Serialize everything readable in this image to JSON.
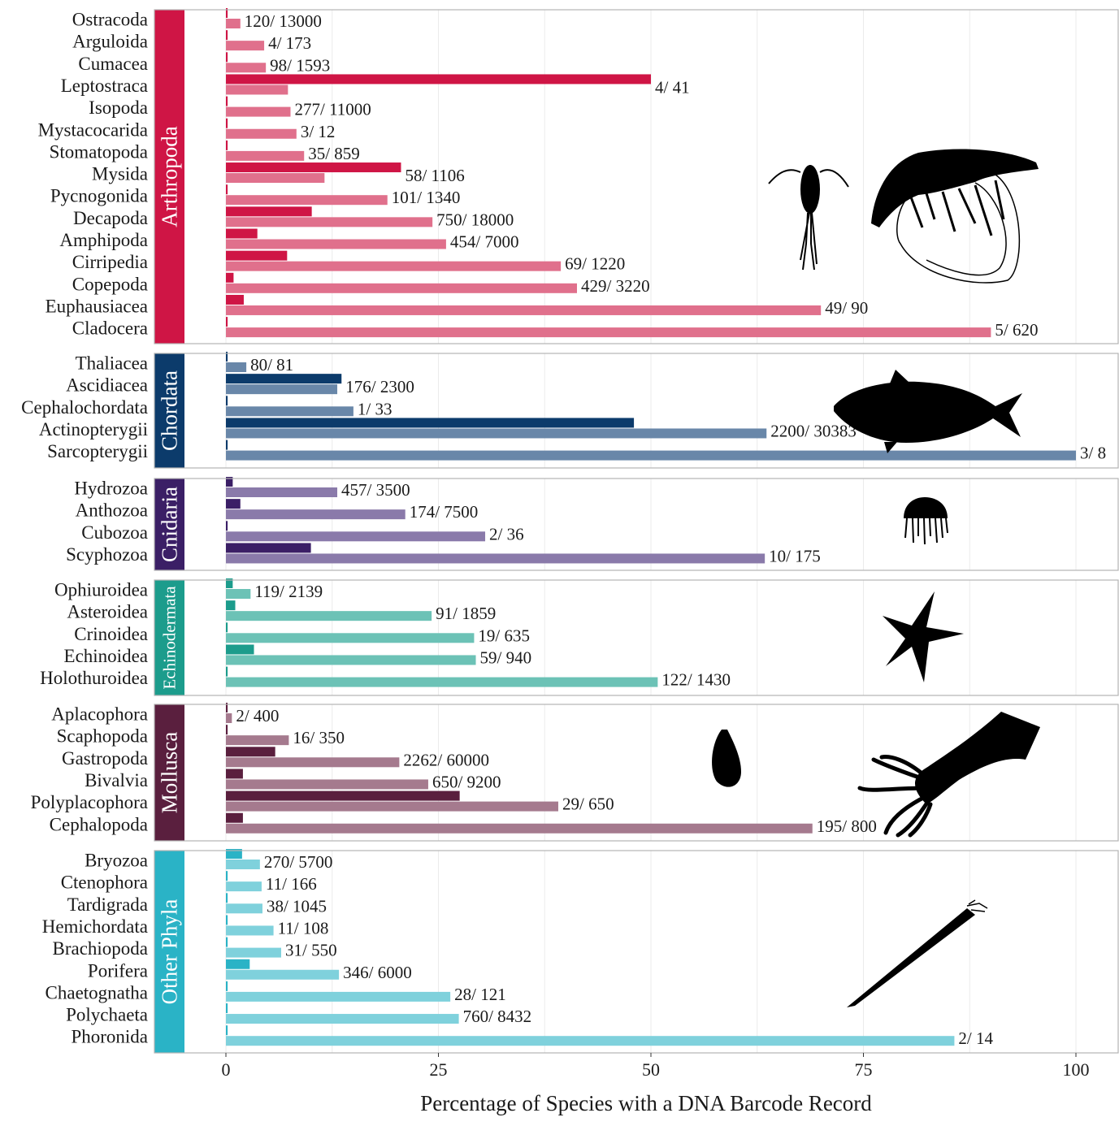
{
  "chart_data": {
    "type": "bar",
    "orientation": "horizontal",
    "faceted": true,
    "xlabel": "Percentage of Species with a DNA Barcode Record",
    "xlim": [
      0,
      100
    ],
    "xticks": [
      0,
      25,
      50,
      75,
      100
    ],
    "legend": "none",
    "series_names": [
      "primary (darker bar, upper)",
      "secondary (lighter bar, lower)"
    ],
    "panels": [
      {
        "phylum": "Arthropoda",
        "color_dark": "#cf1545",
        "color_light": "#e0708c",
        "icons": [
          "copepod-silhouette-icon",
          "shrimp-silhouette-icon"
        ],
        "rows": [
          {
            "name": "Ostracoda",
            "primary": 0.2,
            "secondary": 1.7,
            "label": "120/ 13000"
          },
          {
            "name": "Arguloida",
            "primary": 0.2,
            "secondary": 4.5,
            "label": "4/ 173"
          },
          {
            "name": "Cumacea",
            "primary": 0.2,
            "secondary": 4.7,
            "label": "98/ 1593"
          },
          {
            "name": "Leptostraca",
            "primary": 50,
            "secondary": 7.3,
            "label": "4/ 41"
          },
          {
            "name": "Isopoda",
            "primary": 0.2,
            "secondary": 7.6,
            "label": "277/ 11000"
          },
          {
            "name": "Mystacocarida",
            "primary": 0.2,
            "secondary": 8.3,
            "label": "3/ 12"
          },
          {
            "name": "Stomatopoda",
            "primary": 0.2,
            "secondary": 9.2,
            "label": "35/ 859"
          },
          {
            "name": "Mysida",
            "primary": 20.6,
            "secondary": 11.6,
            "label": "58/ 1106"
          },
          {
            "name": "Pycnogonida",
            "primary": 0.2,
            "secondary": 19.0,
            "label": "101/ 1340"
          },
          {
            "name": "Decapoda",
            "primary": 10.1,
            "secondary": 24.3,
            "label": "750/ 18000"
          },
          {
            "name": "Amphipoda",
            "primary": 3.7,
            "secondary": 25.9,
            "label": "454/ 7000"
          },
          {
            "name": "Cirripedia",
            "primary": 7.2,
            "secondary": 39.4,
            "label": "69/ 1220"
          },
          {
            "name": "Copepoda",
            "primary": 0.9,
            "secondary": 41.3,
            "label": "429/ 3220"
          },
          {
            "name": "Euphausiacea",
            "primary": 2.1,
            "secondary": 70.0,
            "label": "49/ 90"
          },
          {
            "name": "Cladocera",
            "primary": 0.2,
            "secondary": 90.0,
            "label": "5/ 620"
          }
        ]
      },
      {
        "phylum": "Chordata",
        "color_dark": "#0c3b6b",
        "color_light": "#6987a9",
        "icons": [
          "fish-silhouette-icon"
        ],
        "rows": [
          {
            "name": "Thaliacea",
            "primary": 0.2,
            "secondary": 2.4,
            "label": "80/ 81"
          },
          {
            "name": "Ascidiacea",
            "primary": 13.6,
            "secondary": 13.1,
            "label": "176/ 2300"
          },
          {
            "name": "Cephalochordata",
            "primary": 0.2,
            "secondary": 15.0,
            "label": "1/ 33"
          },
          {
            "name": "Actinopterygii",
            "primary": 48.0,
            "secondary": 63.6,
            "label": "2200/ 30383"
          },
          {
            "name": "Sarcopterygii",
            "primary": 0.2,
            "secondary": 100,
            "label": "3/ 8"
          }
        ]
      },
      {
        "phylum": "Cnidaria",
        "color_dark": "#3b1f66",
        "color_light": "#8a7aaa",
        "icons": [
          "jellyfish-silhouette-icon"
        ],
        "rows": [
          {
            "name": "Hydrozoa",
            "primary": 0.8,
            "secondary": 13.1,
            "label": "457/ 3500"
          },
          {
            "name": "Anthozoa",
            "primary": 1.7,
            "secondary": 21.1,
            "label": "174/ 7500"
          },
          {
            "name": "Cubozoa",
            "primary": 0.2,
            "secondary": 30.5,
            "label": "2/ 36"
          },
          {
            "name": "Scyphozoa",
            "primary": 10.0,
            "secondary": 63.4,
            "label": "10/ 175"
          }
        ]
      },
      {
        "phylum": "Echinodermata",
        "color_dark": "#1c9c8c",
        "color_light": "#6cc2b6",
        "icons": [
          "starfish-silhouette-icon"
        ],
        "rows": [
          {
            "name": "Ophiuroidea",
            "primary": 0.8,
            "secondary": 2.9,
            "label": "119/ 2139"
          },
          {
            "name": "Asteroidea",
            "primary": 1.1,
            "secondary": 24.2,
            "label": "91/ 1859"
          },
          {
            "name": "Crinoidea",
            "primary": 0.2,
            "secondary": 29.2,
            "label": "19/ 635"
          },
          {
            "name": "Echinoidea",
            "primary": 3.3,
            "secondary": 29.4,
            "label": "59/ 940"
          },
          {
            "name": "Holothuroidea",
            "primary": 0.2,
            "secondary": 50.8,
            "label": "122/ 1430"
          }
        ]
      },
      {
        "phylum": "Mollusca",
        "color_dark": "#5a1f3e",
        "color_light": "#a57a8e",
        "icons": [
          "snail-shell-silhouette-icon",
          "squid-silhouette-icon"
        ],
        "rows": [
          {
            "name": "Aplacophora",
            "primary": 0.2,
            "secondary": 0.7,
            "label": "2/ 400"
          },
          {
            "name": "Scaphopoda",
            "primary": 0.2,
            "secondary": 7.4,
            "label": "16/ 350"
          },
          {
            "name": "Gastropoda",
            "primary": 5.8,
            "secondary": 20.4,
            "label": "2262/ 60000"
          },
          {
            "name": "Bivalvia",
            "primary": 2.0,
            "secondary": 23.8,
            "label": "650/ 9200"
          },
          {
            "name": "Polyplacophora",
            "primary": 27.5,
            "secondary": 39.1,
            "label": "29/ 650"
          },
          {
            "name": "Cephalopoda",
            "primary": 2.0,
            "secondary": 69.0,
            "label": "195/ 800"
          }
        ]
      },
      {
        "phylum": "Other Phyla",
        "color_dark": "#2ab3c6",
        "color_light": "#7fd1dc",
        "icons": [
          "worm-silhouette-icon"
        ],
        "rows": [
          {
            "name": "Bryozoa",
            "primary": 1.9,
            "secondary": 4.0,
            "label": "270/ 5700"
          },
          {
            "name": "Ctenophora",
            "primary": 0.2,
            "secondary": 4.2,
            "label": "11/ 166"
          },
          {
            "name": "Tardigrada",
            "primary": 0.2,
            "secondary": 4.3,
            "label": "38/ 1045"
          },
          {
            "name": "Hemichordata",
            "primary": 0.2,
            "secondary": 5.6,
            "label": "11/ 108"
          },
          {
            "name": "Brachiopoda",
            "primary": 0.2,
            "secondary": 6.5,
            "label": "31/ 550"
          },
          {
            "name": "Porifera",
            "primary": 2.8,
            "secondary": 13.3,
            "label": "346/ 6000"
          },
          {
            "name": "Chaetognatha",
            "primary": 0.2,
            "secondary": 26.4,
            "label": "28/ 121"
          },
          {
            "name": "Polychaeta",
            "primary": 0.2,
            "secondary": 27.4,
            "label": "760/ 8432"
          },
          {
            "name": "Phoronida",
            "primary": 0.2,
            "secondary": 85.7,
            "label": "2/ 14"
          }
        ]
      }
    ]
  }
}
